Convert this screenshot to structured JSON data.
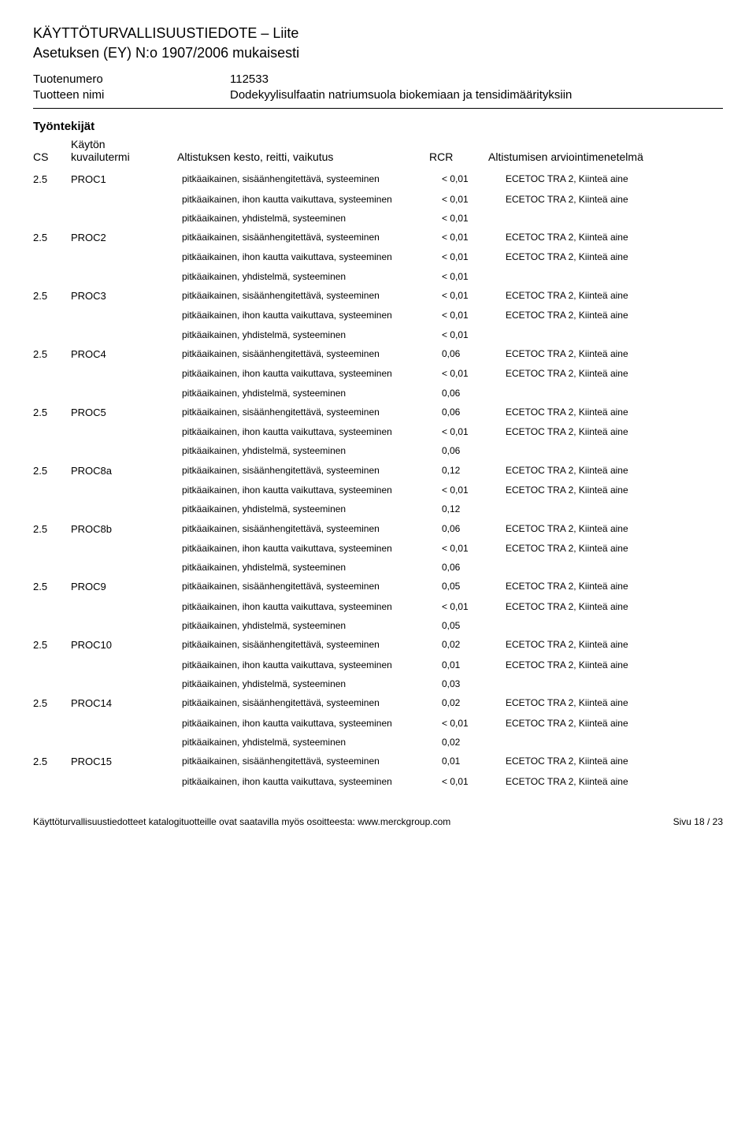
{
  "header": {
    "title": "KÄYTTÖTURVALLISUUSTIEDOTE – Liite",
    "subtitle": "Asetuksen (EY) N:o 1907/2006 mukaisesti",
    "product_number_label": "Tuotenumero",
    "product_number_value": "112533",
    "product_name_label": "Tuotteen nimi",
    "product_name_value": "Dodekyylisulfaatin natriumsuola biokemiaan ja tensidimäärityksiin"
  },
  "section": {
    "heading": "Työntekijät",
    "col_cs": "CS",
    "col_term_top": "Käytön",
    "col_term_bot": "kuvailutermi",
    "col_exposure": "Altistuksen kesto, reitti, vaikutus",
    "col_rcr": "RCR",
    "col_method": "Altistumisen arviointimenetelmä"
  },
  "labels": {
    "inhalation": "pitkäaikainen, sisäänhengitettävä, systeeminen",
    "dermal": "pitkäaikainen, ihon kautta vaikuttava, systeeminen",
    "combined": "pitkäaikainen, yhdistelmä, systeeminen",
    "ecetoc": "ECETOC TRA 2, Kiinteä aine"
  },
  "groups": [
    {
      "cs": "2.5",
      "term": "PROC1",
      "rows": [
        {
          "k": "inhalation",
          "rcr": "< 0,01",
          "m": true
        },
        {
          "k": "dermal",
          "rcr": "< 0,01",
          "m": true
        },
        {
          "k": "combined",
          "rcr": "< 0,01",
          "m": false
        }
      ]
    },
    {
      "cs": "2.5",
      "term": "PROC2",
      "rows": [
        {
          "k": "inhalation",
          "rcr": "< 0,01",
          "m": true
        },
        {
          "k": "dermal",
          "rcr": "< 0,01",
          "m": true
        },
        {
          "k": "combined",
          "rcr": "< 0,01",
          "m": false
        }
      ]
    },
    {
      "cs": "2.5",
      "term": "PROC3",
      "rows": [
        {
          "k": "inhalation",
          "rcr": "< 0,01",
          "m": true
        },
        {
          "k": "dermal",
          "rcr": "< 0,01",
          "m": true
        },
        {
          "k": "combined",
          "rcr": "< 0,01",
          "m": false
        }
      ]
    },
    {
      "cs": "2.5",
      "term": "PROC4",
      "rows": [
        {
          "k": "inhalation",
          "rcr": "0,06",
          "m": true
        },
        {
          "k": "dermal",
          "rcr": "< 0,01",
          "m": true
        },
        {
          "k": "combined",
          "rcr": "0,06",
          "m": false
        }
      ]
    },
    {
      "cs": "2.5",
      "term": "PROC5",
      "rows": [
        {
          "k": "inhalation",
          "rcr": "0,06",
          "m": true
        },
        {
          "k": "dermal",
          "rcr": "< 0,01",
          "m": true
        },
        {
          "k": "combined",
          "rcr": "0,06",
          "m": false
        }
      ]
    },
    {
      "cs": "2.5",
      "term": "PROC8a",
      "rows": [
        {
          "k": "inhalation",
          "rcr": "0,12",
          "m": true
        },
        {
          "k": "dermal",
          "rcr": "< 0,01",
          "m": true
        },
        {
          "k": "combined",
          "rcr": "0,12",
          "m": false
        }
      ]
    },
    {
      "cs": "2.5",
      "term": "PROC8b",
      "rows": [
        {
          "k": "inhalation",
          "rcr": "0,06",
          "m": true
        },
        {
          "k": "dermal",
          "rcr": "< 0,01",
          "m": true
        },
        {
          "k": "combined",
          "rcr": "0,06",
          "m": false
        }
      ]
    },
    {
      "cs": "2.5",
      "term": "PROC9",
      "rows": [
        {
          "k": "inhalation",
          "rcr": "0,05",
          "m": true
        },
        {
          "k": "dermal",
          "rcr": "< 0,01",
          "m": true
        },
        {
          "k": "combined",
          "rcr": "0,05",
          "m": false
        }
      ]
    },
    {
      "cs": "2.5",
      "term": "PROC10",
      "rows": [
        {
          "k": "inhalation",
          "rcr": "0,02",
          "m": true
        },
        {
          "k": "dermal",
          "rcr": "0,01",
          "m": true
        },
        {
          "k": "combined",
          "rcr": "0,03",
          "m": false
        }
      ]
    },
    {
      "cs": "2.5",
      "term": "PROC14",
      "rows": [
        {
          "k": "inhalation",
          "rcr": "0,02",
          "m": true
        },
        {
          "k": "dermal",
          "rcr": "< 0,01",
          "m": true
        },
        {
          "k": "combined",
          "rcr": "0,02",
          "m": false
        }
      ]
    },
    {
      "cs": "2.5",
      "term": "PROC15",
      "rows": [
        {
          "k": "inhalation",
          "rcr": "0,01",
          "m": true
        },
        {
          "k": "dermal",
          "rcr": "< 0,01",
          "m": true
        }
      ]
    }
  ],
  "footer": {
    "left": "Käyttöturvallisuustiedotteet katalogituotteille ovat saatavilla myös osoitteesta: www.merckgroup.com",
    "right": "Sivu 18 / 23"
  }
}
